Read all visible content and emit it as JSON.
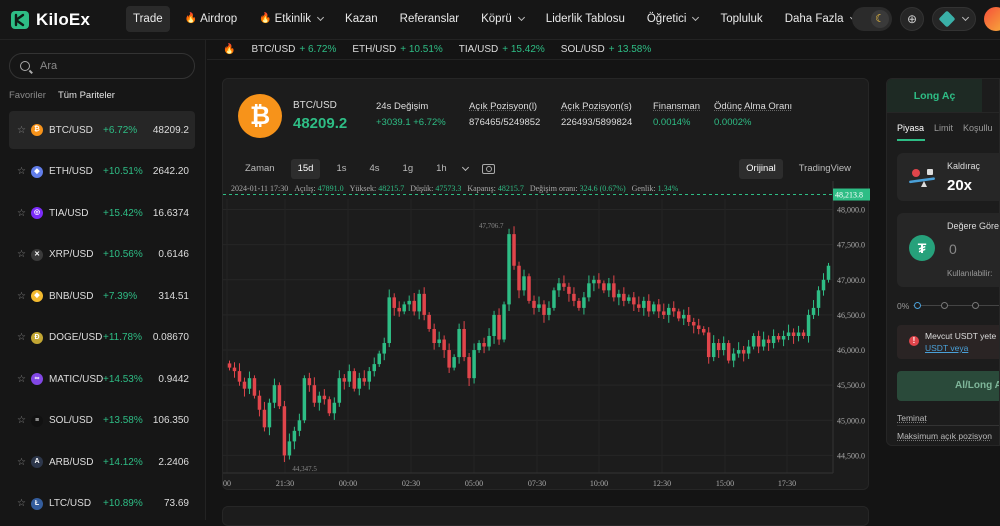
{
  "brand": {
    "name": "KiloEx"
  },
  "nav": [
    {
      "label": "Trade",
      "active": true,
      "fire": false,
      "dropdown": false
    },
    {
      "label": "Airdrop",
      "active": false,
      "fire": true,
      "dropdown": false
    },
    {
      "label": "Etkinlik",
      "active": false,
      "fire": true,
      "dropdown": true
    },
    {
      "label": "Kazan",
      "active": false,
      "fire": false,
      "dropdown": false
    },
    {
      "label": "Referanslar",
      "active": false,
      "fire": false,
      "dropdown": false
    },
    {
      "label": "Köprü",
      "active": false,
      "fire": false,
      "dropdown": true
    },
    {
      "label": "Liderlik Tablosu",
      "active": false,
      "fire": false,
      "dropdown": false
    },
    {
      "label": "Öğretici",
      "active": false,
      "fire": false,
      "dropdown": true
    },
    {
      "label": "Topluluk",
      "active": false,
      "fire": false,
      "dropdown": false
    },
    {
      "label": "Daha Fazla",
      "active": false,
      "fire": false,
      "dropdown": true
    }
  ],
  "ticker": [
    {
      "pair": "BTC/USD",
      "change": "+ 6.72%"
    },
    {
      "pair": "ETH/USD",
      "change": "+ 10.51%"
    },
    {
      "pair": "TIA/USD",
      "change": "+ 15.42%"
    },
    {
      "pair": "SOL/USD",
      "change": "+ 13.58%"
    }
  ],
  "sidebar": {
    "search_placeholder": "Ara",
    "tabs": [
      "Favoriler",
      "Tüm Pariteler"
    ],
    "pairs": [
      {
        "name": "BTC/USD",
        "change": "+6.72%",
        "price": "48209.2",
        "icon": "btc-icon",
        "color": "#f7931a",
        "glyph": "₿"
      },
      {
        "name": "ETH/USD",
        "change": "+10.51%",
        "price": "2642.20",
        "icon": "eth-icon",
        "color": "#627eea",
        "glyph": "◆"
      },
      {
        "name": "TIA/USD",
        "change": "+15.42%",
        "price": "16.6374",
        "icon": "tia-icon",
        "color": "#7b2bf9",
        "glyph": "◎"
      },
      {
        "name": "XRP/USD",
        "change": "+10.56%",
        "price": "0.6146",
        "icon": "xrp-icon",
        "color": "#3a3a3a",
        "glyph": "✕"
      },
      {
        "name": "BNB/USD",
        "change": "+7.39%",
        "price": "314.51",
        "icon": "bnb-icon",
        "color": "#f3ba2f",
        "glyph": "◆"
      },
      {
        "name": "DOGE/USD",
        "change": "+11.78%",
        "price": "0.08670",
        "icon": "doge-icon",
        "color": "#c2a633",
        "glyph": "Ð"
      },
      {
        "name": "MATIC/USD",
        "change": "+14.53%",
        "price": "0.9442",
        "icon": "matic-icon",
        "color": "#8247e5",
        "glyph": "∞"
      },
      {
        "name": "SOL/USD",
        "change": "+13.58%",
        "price": "106.350",
        "icon": "sol-icon",
        "color": "#111111",
        "glyph": "≡"
      },
      {
        "name": "ARB/USD",
        "change": "+14.12%",
        "price": "2.2406",
        "icon": "arb-icon",
        "color": "#2d374b",
        "glyph": "A"
      },
      {
        "name": "LTC/USD",
        "change": "+10.89%",
        "price": "73.69",
        "icon": "ltc-icon",
        "color": "#345d9d",
        "glyph": "Ł"
      }
    ]
  },
  "market": {
    "symbol": "BTC/USD",
    "price": "48209.2",
    "stats": [
      {
        "label": "24s Değişim",
        "value": "+3039.1  +6.72%",
        "green": true,
        "underline": false
      },
      {
        "label": "Açık Pozisyon(l)",
        "value": "876465/5249852",
        "green": false,
        "underline": true
      },
      {
        "label": "Açık Pozisyon(s)",
        "value": "226493/5899824",
        "green": false,
        "underline": true
      },
      {
        "label": "Finansman",
        "value": "0.0014%",
        "green": true,
        "underline": true
      },
      {
        "label": "Ödünç Alma Oranı",
        "value": "0.0002%",
        "green": true,
        "underline": true
      }
    ]
  },
  "toolbar": {
    "label": "Zaman",
    "intervals": [
      "15d",
      "1s",
      "4s",
      "1g",
      "1h"
    ],
    "active_interval": "15d",
    "views": [
      "Orijinal",
      "TradingView"
    ],
    "active_view": "Orijinal"
  },
  "chart_data": {
    "type": "candlestick",
    "ohlc_readout": {
      "date": "2024-01-11 17:30",
      "open_label": "Açılış:",
      "open": "47891.0",
      "high_label": "Yüksek:",
      "high": "48215.7",
      "low_label": "Düşük:",
      "low": "47573.3",
      "close_label": "Kapanış:",
      "close": "48215.7",
      "change_label": "Değişim oranı:",
      "change": "324.6 (0.67%)",
      "amp_label": "Genlik:",
      "amplitude": "1.34%"
    },
    "last_price_label": "48,213.8",
    "last_price": 48213.8,
    "y_ticks": [
      "48,000.0",
      "47,500.0",
      "47,000.0",
      "46,500.0",
      "46,000.0",
      "45,500.0",
      "45,000.0",
      "44,500.0"
    ],
    "y_tick_values": [
      48000,
      47500,
      47000,
      46500,
      46000,
      45500,
      45000,
      44500
    ],
    "x_ticks": [
      "00",
      "21:30",
      "00:00",
      "02:30",
      "05:00",
      "07:30",
      "10:00",
      "12:30",
      "15:00",
      "17:30"
    ],
    "high_marker": "47,706.7",
    "low_marker": "44,347.5",
    "closes": [
      45750,
      45700,
      45550,
      45450,
      45600,
      45350,
      45150,
      44900,
      45250,
      45500,
      45200,
      44500,
      44700,
      44850,
      45000,
      45600,
      45500,
      45250,
      45350,
      45300,
      45100,
      45250,
      45600,
      45550,
      45700,
      45450,
      45600,
      45550,
      45700,
      45800,
      45950,
      46100,
      46750,
      46600,
      46550,
      46650,
      46700,
      46550,
      46800,
      46500,
      46300,
      46100,
      46150,
      46000,
      45750,
      45900,
      46300,
      45900,
      45600,
      46000,
      46100,
      46050,
      46200,
      46500,
      46150,
      46650,
      47650,
      47200,
      46850,
      47050,
      46700,
      46600,
      46650,
      46500,
      46600,
      46850,
      46950,
      46900,
      46800,
      46700,
      46600,
      46750,
      46950,
      47000,
      46950,
      46850,
      46950,
      46750,
      46800,
      46700,
      46750,
      46650,
      46600,
      46700,
      46550,
      46650,
      46550,
      46500,
      46600,
      46550,
      46450,
      46500,
      46400,
      46350,
      46300,
      46250,
      45900,
      46100,
      46000,
      46100,
      45850,
      45950,
      46000,
      45950,
      46050,
      46200,
      46050,
      46150,
      46100,
      46200,
      46150,
      46200,
      46250,
      46200,
      46250,
      46200,
      46500,
      46600,
      46850,
      47000,
      47200
    ]
  },
  "trade_panel": {
    "side_tab": "Long Aç",
    "order_types": [
      "Piyasa",
      "Limit",
      "Koşullu"
    ],
    "leverage_label": "Kaldıraç",
    "leverage_value": "20x",
    "collateral_label": "Değere Göre",
    "collateral_value": "0",
    "usable_label": "Kullanılabilir:",
    "slider_start": "0%",
    "warning_text": "Mevcut USDT yete",
    "warning_link": "USDT veya",
    "action_button": "Al/Long A",
    "collateral_note": "Teminat",
    "max_position_note": "Maksimum açık pozisyon"
  }
}
